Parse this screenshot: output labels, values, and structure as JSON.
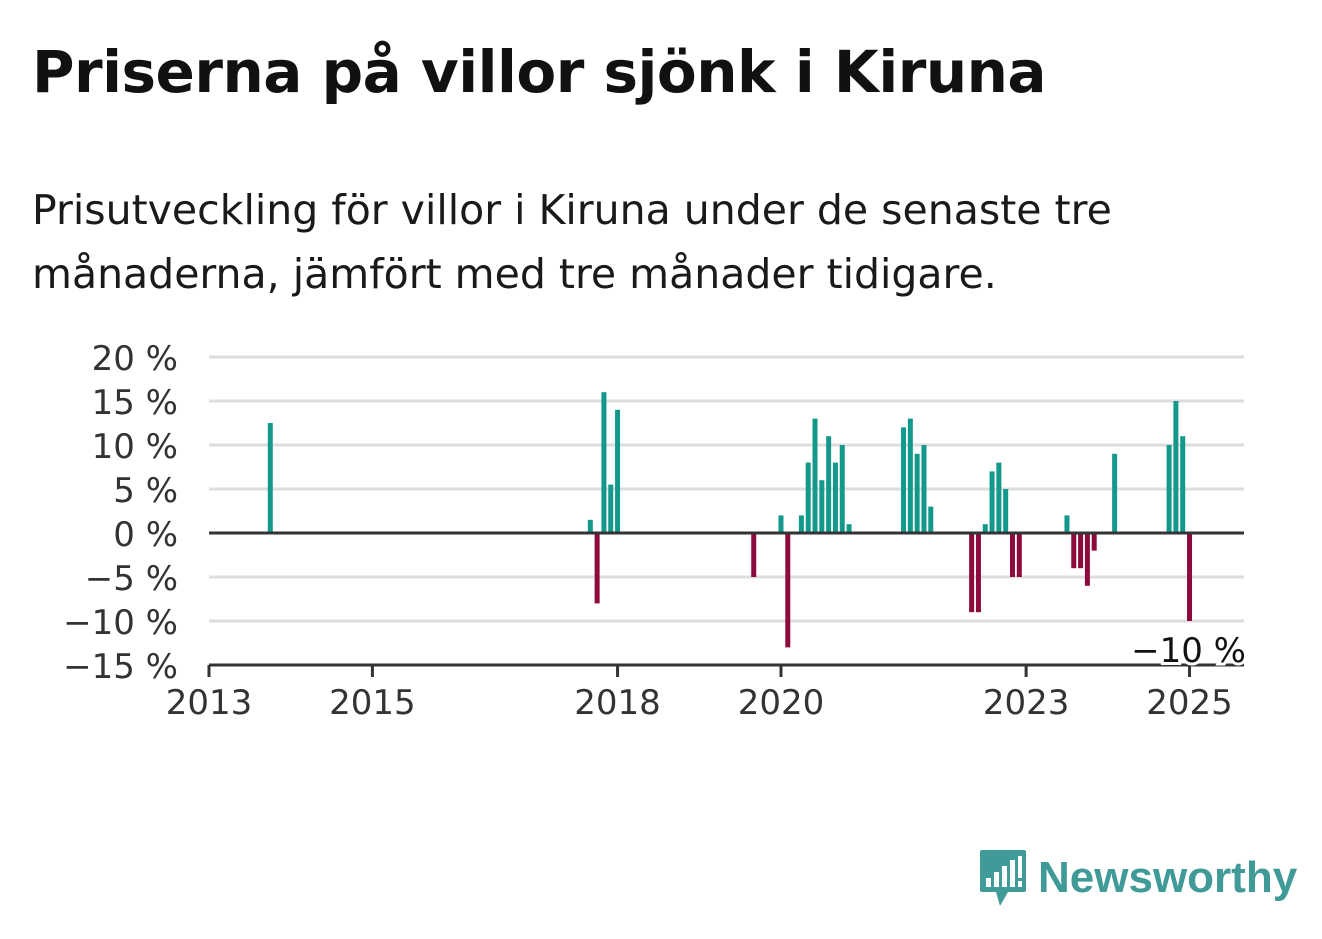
{
  "title": "Priserna på villor sjönk i Kiruna",
  "subtitle": "Prisutveckling för villor i Kiruna under de senaste tre månaderna, jämfört med tre månader tidigare.",
  "brand": {
    "name": "Newsworthy",
    "icon": "newsworthy-logo-icon"
  },
  "colors": {
    "positive": "#12998b",
    "negative": "#8c0a3c",
    "grid": "#dddddd",
    "axis": "#333333"
  },
  "chart_data": {
    "type": "bar",
    "title": "Priserna på villor sjönk i Kiruna",
    "xlabel": "",
    "ylabel": "",
    "x_ticks": [
      "2013",
      "2015",
      "2018",
      "2020",
      "2023",
      "2025"
    ],
    "y_ticks": [
      "20 %",
      "15 %",
      "10 %",
      "5 %",
      "0 %",
      "−5 %",
      "−10 %",
      "−15 %"
    ],
    "ylim": [
      -15,
      20
    ],
    "xlim": [
      "2013-01",
      "2025-09"
    ],
    "grid": true,
    "last_value_label": "−10 %",
    "series": [
      {
        "points": [
          {
            "x": "2013-10",
            "y": 12.5
          },
          {
            "x": "2017-09",
            "y": 1.5
          },
          {
            "x": "2017-10",
            "y": -8
          },
          {
            "x": "2017-11",
            "y": 16
          },
          {
            "x": "2017-12",
            "y": 5.5
          },
          {
            "x": "2018-01",
            "y": 14
          },
          {
            "x": "2019-09",
            "y": -5
          },
          {
            "x": "2020-01",
            "y": 2
          },
          {
            "x": "2020-02",
            "y": -13
          },
          {
            "x": "2020-04",
            "y": 2
          },
          {
            "x": "2020-05",
            "y": 8
          },
          {
            "x": "2020-06",
            "y": 13
          },
          {
            "x": "2020-07",
            "y": 6
          },
          {
            "x": "2020-08",
            "y": 11
          },
          {
            "x": "2020-09",
            "y": 8
          },
          {
            "x": "2020-10",
            "y": 10
          },
          {
            "x": "2020-11",
            "y": 1
          },
          {
            "x": "2021-07",
            "y": 12
          },
          {
            "x": "2021-08",
            "y": 13
          },
          {
            "x": "2021-09",
            "y": 9
          },
          {
            "x": "2021-10",
            "y": 10
          },
          {
            "x": "2021-11",
            "y": 3
          },
          {
            "x": "2022-05",
            "y": -9
          },
          {
            "x": "2022-06",
            "y": -9
          },
          {
            "x": "2022-07",
            "y": 1
          },
          {
            "x": "2022-08",
            "y": 7
          },
          {
            "x": "2022-09",
            "y": 8
          },
          {
            "x": "2022-10",
            "y": 5
          },
          {
            "x": "2022-11",
            "y": -5
          },
          {
            "x": "2022-12",
            "y": -5
          },
          {
            "x": "2023-07",
            "y": 2
          },
          {
            "x": "2023-08",
            "y": -4
          },
          {
            "x": "2023-09",
            "y": -4
          },
          {
            "x": "2023-10",
            "y": -6
          },
          {
            "x": "2023-11",
            "y": -2
          },
          {
            "x": "2024-02",
            "y": 9
          },
          {
            "x": "2024-10",
            "y": 10
          },
          {
            "x": "2024-11",
            "y": 15
          },
          {
            "x": "2024-12",
            "y": 11
          },
          {
            "x": "2025-01",
            "y": -10
          }
        ]
      }
    ]
  }
}
